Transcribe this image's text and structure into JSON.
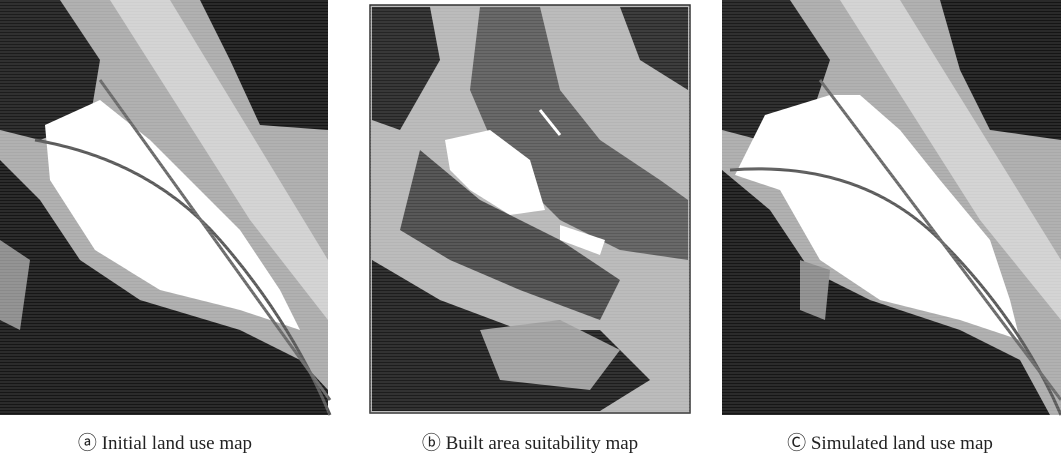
{
  "panels": [
    {
      "caption": "ⓐ Initial land use map"
    },
    {
      "caption": "ⓑ Built area suitability map"
    },
    {
      "caption": "Ⓒ Simulated land use map"
    }
  ]
}
